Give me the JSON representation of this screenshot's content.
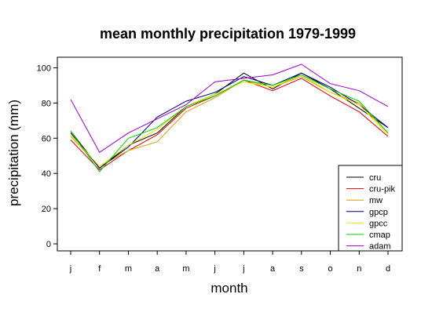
{
  "chart_data": {
    "type": "line",
    "title": "mean monthly precipitation 1979-1999",
    "xlabel": "month",
    "ylabel": "precipitation (mm)",
    "categories": [
      "j",
      "f",
      "m",
      "a",
      "m",
      "j",
      "j",
      "a",
      "s",
      "o",
      "n",
      "d"
    ],
    "ylim": [
      -4,
      106
    ],
    "yticks": [
      0,
      20,
      40,
      60,
      80,
      100
    ],
    "grid": false,
    "legend_position": "bottom-right",
    "series": [
      {
        "name": "cru",
        "color": "#000000",
        "values": [
          64,
          43,
          56,
          63,
          78,
          85,
          97,
          88,
          97,
          88,
          77,
          66
        ]
      },
      {
        "name": "cru-pik",
        "color": "#e00000",
        "values": [
          59,
          42,
          53,
          62,
          77,
          84,
          93,
          87,
          94,
          84,
          75,
          61
        ]
      },
      {
        "name": "mw",
        "color": "#d4a000",
        "values": [
          61,
          44,
          53,
          58,
          75,
          83,
          93,
          89,
          95,
          86,
          80,
          63
        ]
      },
      {
        "name": "gpcp",
        "color": "#000080",
        "values": [
          63,
          43,
          55,
          72,
          81,
          86,
          95,
          90,
          97,
          89,
          79,
          66
        ]
      },
      {
        "name": "gpcc",
        "color": "#e8e800",
        "values": [
          62,
          44,
          56,
          65,
          78,
          85,
          92,
          89,
          96,
          86,
          79,
          62
        ]
      },
      {
        "name": "cmap",
        "color": "#00cc00",
        "values": [
          64,
          41,
          60,
          66,
          78,
          84,
          93,
          90,
          96,
          88,
          81,
          63
        ]
      },
      {
        "name": "adam",
        "color": "#9900cc",
        "values": [
          82,
          52,
          63,
          71,
          79,
          92,
          94,
          96,
          102,
          91,
          87,
          78
        ]
      }
    ]
  }
}
